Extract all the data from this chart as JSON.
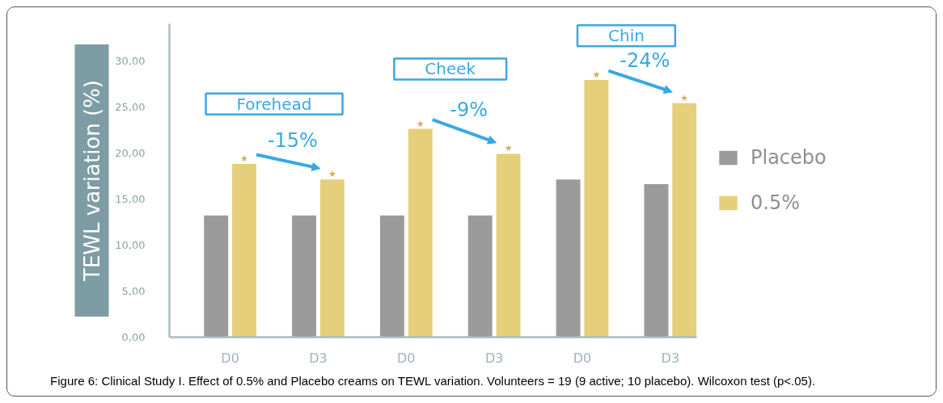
{
  "chart_data": {
    "type": "bar",
    "ylabel": "TEWL variation (%)",
    "categories": [
      "D0",
      "D3",
      "D0",
      "D3",
      "D0",
      "D3"
    ],
    "series": [
      {
        "name": "Placebo",
        "color": "#9b9b9b",
        "values": [
          13.2,
          13.2,
          13.2,
          13.2,
          17.1,
          16.6
        ]
      },
      {
        "name": "0.5%",
        "color": "#e6cf7a",
        "values": [
          18.8,
          17.1,
          22.6,
          19.9,
          27.9,
          25.4
        ],
        "value_labels": [
          "★",
          "★",
          "★",
          "★",
          "★",
          "★"
        ]
      }
    ],
    "ylim": [
      0,
      34
    ],
    "yticks": [
      {
        "value": 0,
        "label": "0,00"
      },
      {
        "value": 5,
        "label": "5,00"
      },
      {
        "value": 10,
        "label": "10,00"
      },
      {
        "value": 15,
        "label": "15,00"
      },
      {
        "value": 20,
        "label": "20,00"
      },
      {
        "value": 25,
        "label": "25,00"
      },
      {
        "value": 30,
        "label": "30,00"
      }
    ],
    "legend": "right",
    "annotations": [
      "Forehead",
      "-15%",
      "Cheek",
      "-9%",
      "Chin",
      "-24%",
      "Figure 6: Clinical Study I. Effect of 0.5% and Placebo creams on TEWL variation. Volunteers = 19 (9 active; 10 placebo). Wilcoxon test (p<.05)."
    ]
  }
}
